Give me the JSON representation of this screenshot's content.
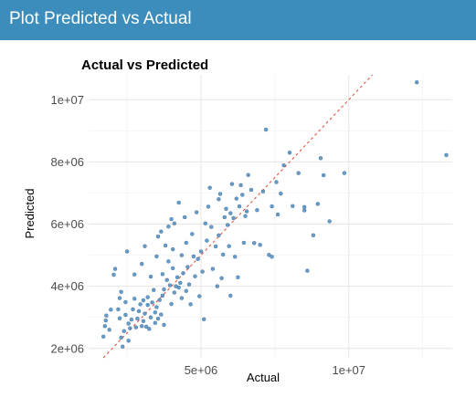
{
  "panel": {
    "title": "Plot Predicted vs Actual"
  },
  "chart_data": {
    "type": "scatter",
    "title": "Actual vs Predicted",
    "xlabel": "Actual",
    "ylabel": "Predicted",
    "xlim": [
      1200000,
      13500000
    ],
    "ylim": [
      1700000,
      10800000
    ],
    "x_ticks": [
      5000000,
      10000000
    ],
    "x_tick_labels": [
      "5e+06",
      "1e+07"
    ],
    "y_ticks": [
      2000000,
      4000000,
      6000000,
      8000000,
      10000000
    ],
    "y_tick_labels": [
      "2e+06",
      "4e+06",
      "6e+06",
      "8e+06",
      "1e+07"
    ],
    "grid": true,
    "point_color": "#4f8bbf",
    "reference_line": {
      "slope": 1,
      "intercept": 0,
      "color": "#e34a33",
      "style": "dashed"
    },
    "points": [
      [
        1700000,
        2380000
      ],
      [
        1750000,
        2720000
      ],
      [
        1780000,
        2900000
      ],
      [
        1800000,
        3060000
      ],
      [
        1900000,
        2600000
      ],
      [
        1950000,
        3250000
      ],
      [
        2050000,
        4370000
      ],
      [
        2100000,
        4560000
      ],
      [
        2200000,
        3260000
      ],
      [
        2250000,
        2970000
      ],
      [
        2250000,
        3620000
      ],
      [
        2300000,
        3820000
      ],
      [
        2300000,
        2350000
      ],
      [
        2350000,
        2060000
      ],
      [
        2400000,
        2560000
      ],
      [
        2450000,
        3080000
      ],
      [
        2450000,
        3490000
      ],
      [
        2500000,
        5120000
      ],
      [
        2550000,
        2250000
      ],
      [
        2550000,
        2800000
      ],
      [
        2600000,
        2650000
      ],
      [
        2650000,
        2930000
      ],
      [
        2700000,
        3260000
      ],
      [
        2750000,
        3600000
      ],
      [
        2750000,
        4380000
      ],
      [
        2800000,
        2680000
      ],
      [
        2850000,
        2960000
      ],
      [
        2900000,
        3200000
      ],
      [
        2950000,
        3420000
      ],
      [
        3000000,
        2720000
      ],
      [
        3000000,
        4720000
      ],
      [
        3050000,
        3550000
      ],
      [
        3050000,
        2880000
      ],
      [
        3100000,
        3120000
      ],
      [
        3100000,
        5290000
      ],
      [
        3150000,
        2700000
      ],
      [
        3200000,
        3400000
      ],
      [
        3200000,
        3650000
      ],
      [
        3250000,
        2630000
      ],
      [
        3300000,
        3000000
      ],
      [
        3300000,
        4310000
      ],
      [
        3350000,
        3480000
      ],
      [
        3400000,
        3880000
      ],
      [
        3450000,
        3160000
      ],
      [
        3450000,
        2820000
      ],
      [
        3500000,
        3330000
      ],
      [
        3500000,
        4960000
      ],
      [
        3550000,
        2960000
      ],
      [
        3550000,
        5600000
      ],
      [
        3600000,
        3560000
      ],
      [
        3650000,
        3090000
      ],
      [
        3650000,
        5760000
      ],
      [
        3700000,
        3700000
      ],
      [
        3700000,
        4390000
      ],
      [
        3750000,
        3900000
      ],
      [
        3750000,
        2760000
      ],
      [
        3800000,
        5310000
      ],
      [
        3850000,
        4200000
      ],
      [
        3900000,
        5920000
      ],
      [
        3900000,
        4800000
      ],
      [
        3950000,
        4030000
      ],
      [
        4000000,
        3430000
      ],
      [
        4000000,
        6160000
      ],
      [
        4050000,
        4580000
      ],
      [
        4050000,
        5190000
      ],
      [
        4100000,
        3800000
      ],
      [
        4100000,
        6020000
      ],
      [
        4150000,
        4000000
      ],
      [
        4200000,
        4290000
      ],
      [
        4250000,
        3960000
      ],
      [
        4250000,
        6690000
      ],
      [
        4300000,
        4110000
      ],
      [
        4350000,
        5000000
      ],
      [
        4350000,
        3620000
      ],
      [
        4400000,
        4420000
      ],
      [
        4450000,
        6220000
      ],
      [
        4500000,
        3850000
      ],
      [
        4500000,
        5400000
      ],
      [
        4550000,
        4620000
      ],
      [
        4600000,
        4060000
      ],
      [
        4650000,
        3420000
      ],
      [
        4700000,
        5680000
      ],
      [
        4750000,
        4960000
      ],
      [
        4800000,
        4320000
      ],
      [
        4850000,
        6380000
      ],
      [
        4900000,
        4880000
      ],
      [
        4950000,
        3680000
      ],
      [
        5000000,
        5120000
      ],
      [
        5050000,
        4470000
      ],
      [
        5100000,
        2940000
      ],
      [
        5150000,
        6020000
      ],
      [
        5200000,
        5470000
      ],
      [
        5250000,
        6560000
      ],
      [
        5300000,
        7170000
      ],
      [
        5350000,
        5910000
      ],
      [
        5400000,
        4560000
      ],
      [
        5500000,
        5280000
      ],
      [
        5550000,
        4000000
      ],
      [
        5600000,
        5640000
      ],
      [
        5650000,
        6970000
      ],
      [
        5700000,
        4260000
      ],
      [
        5750000,
        5020000
      ],
      [
        5800000,
        6220000
      ],
      [
        5850000,
        6490000
      ],
      [
        5900000,
        5970000
      ],
      [
        5950000,
        5290000
      ],
      [
        6000000,
        3700000
      ],
      [
        6050000,
        7290000
      ],
      [
        6100000,
        6190000
      ],
      [
        6150000,
        4950000
      ],
      [
        6200000,
        6820000
      ],
      [
        6250000,
        4290000
      ],
      [
        6300000,
        6570000
      ],
      [
        6350000,
        7250000
      ],
      [
        6400000,
        6940000
      ],
      [
        6450000,
        5400000
      ],
      [
        6500000,
        6260000
      ],
      [
        6550000,
        6410000
      ],
      [
        6600000,
        7580000
      ],
      [
        6700000,
        7100000
      ],
      [
        6800000,
        5390000
      ],
      [
        6900000,
        6450000
      ],
      [
        7000000,
        5330000
      ],
      [
        7100000,
        7050000
      ],
      [
        7200000,
        9040000
      ],
      [
        7300000,
        5010000
      ],
      [
        7400000,
        4950000
      ],
      [
        7400000,
        6570000
      ],
      [
        7550000,
        7350000
      ],
      [
        7600000,
        6310000
      ],
      [
        7700000,
        6980000
      ],
      [
        7800000,
        7890000
      ],
      [
        8000000,
        8300000
      ],
      [
        8100000,
        6580000
      ],
      [
        8300000,
        7640000
      ],
      [
        8500000,
        6440000
      ],
      [
        8600000,
        4500000
      ],
      [
        8800000,
        5640000
      ],
      [
        8950000,
        6650000
      ],
      [
        9050000,
        8120000
      ],
      [
        9150000,
        7570000
      ],
      [
        9350000,
        6090000
      ],
      [
        9850000,
        7640000
      ],
      [
        12300000,
        10560000
      ],
      [
        13300000,
        8220000
      ],
      [
        8500000,
        6550000
      ],
      [
        6000000,
        6350000
      ],
      [
        5600000,
        6800000
      ]
    ]
  }
}
